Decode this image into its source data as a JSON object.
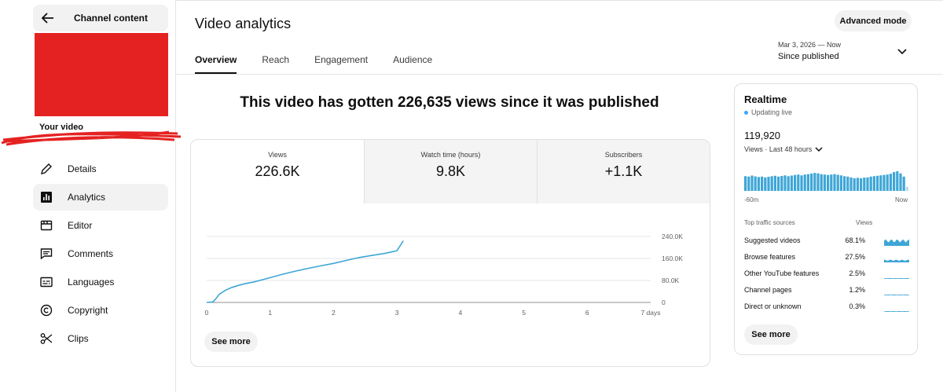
{
  "sidebar": {
    "back_label": "Channel content",
    "your_video": "Your video",
    "items": [
      {
        "label": "Details",
        "icon": "pencil-icon"
      },
      {
        "label": "Analytics",
        "icon": "analytics-icon",
        "active": true
      },
      {
        "label": "Editor",
        "icon": "editor-icon"
      },
      {
        "label": "Comments",
        "icon": "comments-icon"
      },
      {
        "label": "Languages",
        "icon": "languages-icon"
      },
      {
        "label": "Copyright",
        "icon": "copyright-icon"
      },
      {
        "label": "Clips",
        "icon": "scissors-icon"
      }
    ]
  },
  "header": {
    "title": "Video analytics",
    "tabs": [
      {
        "label": "Overview",
        "active": true
      },
      {
        "label": "Reach"
      },
      {
        "label": "Engagement"
      },
      {
        "label": "Audience"
      }
    ],
    "advanced_mode": "Advanced mode",
    "date_range": "Mar 3, 2026 — Now",
    "period": "Since published"
  },
  "headline": "This video has gotten 226,635 views since it was published",
  "metrics": [
    {
      "label": "Views",
      "value": "226.6K"
    },
    {
      "label": "Watch time (hours)",
      "value": "9.8K"
    },
    {
      "label": "Subscribers",
      "value": "+1.1K"
    }
  ],
  "chart_data": {
    "type": "line",
    "x_tick_labels": [
      "0",
      "1",
      "2",
      "3",
      "4",
      "5",
      "6",
      "7 days"
    ],
    "x_ticks": [
      0,
      1,
      2,
      3,
      4,
      5,
      6,
      7
    ],
    "y_tick_labels": [
      "0",
      "80.0K",
      "160.0K",
      "240.0K"
    ],
    "y_ticks": [
      0,
      80000,
      160000,
      240000
    ],
    "xlim": [
      0,
      7
    ],
    "ylim": [
      0,
      240000
    ],
    "grid": true,
    "color": "#3ea6d6",
    "series": [
      {
        "x": [
          0,
          0.1,
          0.15,
          0.2,
          0.3,
          0.4,
          0.5,
          0.6,
          0.75,
          0.9,
          1.0,
          1.2,
          1.4,
          1.6,
          1.8,
          2.0,
          2.2,
          2.4,
          2.6,
          2.8,
          3.0,
          3.1
        ],
        "y": [
          0,
          2000,
          15000,
          30000,
          45000,
          55000,
          62000,
          68000,
          75000,
          84000,
          90000,
          103000,
          114000,
          124000,
          133000,
          142000,
          153000,
          163000,
          171000,
          178000,
          188000,
          224000
        ]
      }
    ]
  },
  "see_more": "See more",
  "realtime": {
    "title": "Realtime",
    "live": "Updating live",
    "count": "119,920",
    "subtitle": "Views · Last 48 hours",
    "axis_left": "-60m",
    "axis_right": "Now",
    "bar_color": "#3ea6d6",
    "bars": [
      0.72,
      0.7,
      0.75,
      0.71,
      0.68,
      0.7,
      0.66,
      0.69,
      0.72,
      0.74,
      0.7,
      0.73,
      0.76,
      0.72,
      0.75,
      0.78,
      0.8,
      0.76,
      0.8,
      0.82,
      0.85,
      0.88,
      0.86,
      0.82,
      0.8,
      0.78,
      0.8,
      0.82,
      0.79,
      0.76,
      0.72,
      0.7,
      0.66,
      0.62,
      0.64,
      0.62,
      0.65,
      0.66,
      0.7,
      0.72,
      0.74,
      0.76,
      0.78,
      0.8,
      0.84,
      0.92,
      0.96,
      0.86,
      0.7,
      0.2
    ],
    "sources_header": "Top traffic sources",
    "views_header": "Views",
    "sources": [
      {
        "name": "Suggested videos",
        "pct": "68.1%",
        "level": 0.681
      },
      {
        "name": "Browse features",
        "pct": "27.5%",
        "level": 0.275
      },
      {
        "name": "Other YouTube features",
        "pct": "2.5%",
        "level": 0.025
      },
      {
        "name": "Channel pages",
        "pct": "1.2%",
        "level": 0.012
      },
      {
        "name": "Direct or unknown",
        "pct": "0.3%",
        "level": 0.003
      }
    ]
  }
}
